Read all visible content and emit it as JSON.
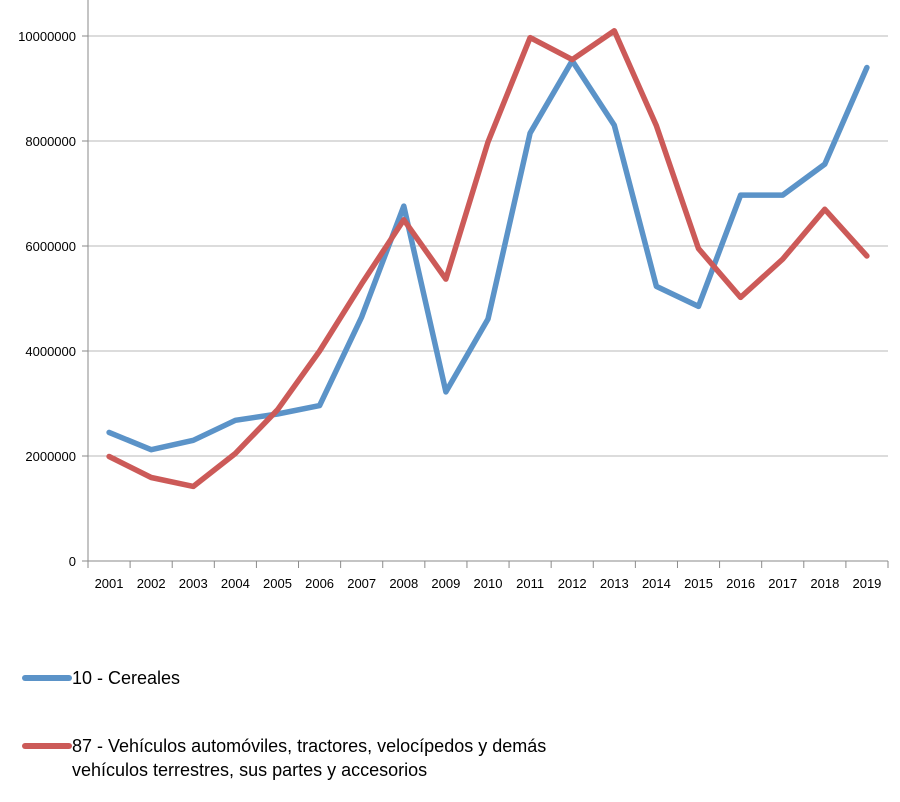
{
  "chart_data": {
    "type": "line",
    "title": "",
    "xlabel": "",
    "ylabel": "",
    "x": [
      "2001",
      "2002",
      "2003",
      "2004",
      "2005",
      "2006",
      "2007",
      "2008",
      "2009",
      "2010",
      "2011",
      "2012",
      "2013",
      "2014",
      "2015",
      "2016",
      "2017",
      "2018",
      "2019"
    ],
    "ylim": [
      0,
      10000000
    ],
    "yticks": [
      "0",
      "2000000",
      "4000000",
      "6000000",
      "8000000",
      "10000000"
    ],
    "grid": true,
    "legend_position": "bottom",
    "series": [
      {
        "name": "10 - Cereales",
        "color": "#5b93c8",
        "values": [
          2450000,
          2120000,
          2300000,
          2680000,
          2800000,
          2960000,
          4650000,
          6760000,
          3220000,
          4610000,
          8150000,
          9530000,
          8300000,
          5230000,
          4850000,
          6970000,
          6970000,
          7560000,
          9400000
        ]
      },
      {
        "name": "87 - Vehículos automóviles, tractores, velocípedos y demás vehículos terrestres, sus partes y accesorios",
        "color": "#cc5a58",
        "values": [
          1990000,
          1590000,
          1420000,
          2050000,
          2880000,
          4000000,
          5280000,
          6500000,
          5370000,
          7980000,
          9970000,
          9550000,
          10100000,
          8290000,
          5950000,
          5020000,
          5750000,
          6700000,
          5810000
        ]
      }
    ]
  },
  "legend": {
    "item1": "10 - Cereales",
    "item2_line1": "87 - Vehículos automóviles, tractores, velocípedos y demás",
    "item2_line2": "vehículos terrestres, sus partes y accesorios"
  }
}
